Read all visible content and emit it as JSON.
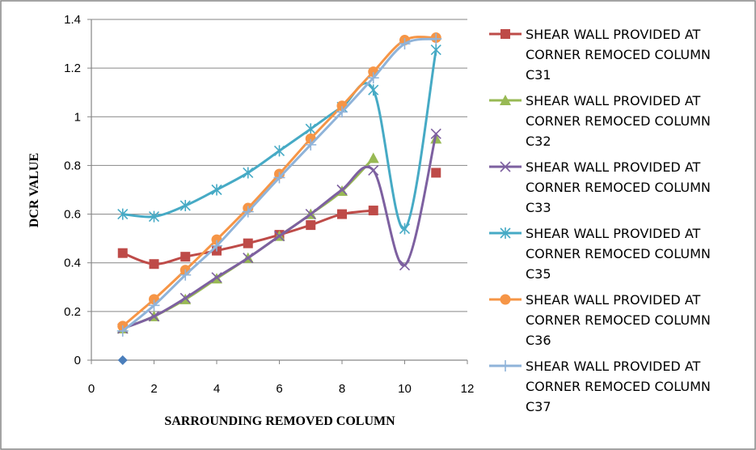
{
  "chart_data": {
    "type": "line",
    "title": "",
    "xlabel": "SARROUNDING REMOVED COLUMN",
    "ylabel": "DCR VALUE",
    "xlim": [
      0,
      12
    ],
    "ylim": [
      0,
      1.4
    ],
    "x_ticks": [
      "0",
      "2",
      "4",
      "6",
      "8",
      "10",
      "12"
    ],
    "y_ticks": [
      "0",
      "0.2",
      "0.4",
      "0.6",
      "0.8",
      "1",
      "1.2",
      "1.4"
    ],
    "grid": "horizontal",
    "legend_position": "right",
    "series": [
      {
        "name_lines": [
          "SHEAR WALL PROVIDED AT",
          "CORNER REMOCED COLUMN",
          "C31"
        ],
        "color": "#be4b48",
        "marker": "square",
        "x": [
          1,
          2,
          3,
          4,
          5,
          6,
          7,
          8,
          9,
          10,
          11
        ],
        "y": [
          0.44,
          0.395,
          0.425,
          0.45,
          0.48,
          0.515,
          0.555,
          0.6,
          0.615,
          null,
          0.77
        ]
      },
      {
        "name_lines": [
          "SHEAR WALL PROVIDED AT",
          "CORNER REMOCED COLUMN",
          "C32"
        ],
        "color": "#98b954",
        "marker": "triangle",
        "x": [
          1,
          2,
          3,
          4,
          5,
          6,
          7,
          8,
          9,
          10,
          11
        ],
        "y": [
          0.13,
          0.18,
          0.25,
          0.335,
          0.42,
          0.51,
          0.6,
          0.695,
          0.83,
          null,
          0.91
        ]
      },
      {
        "name_lines": [
          "SHEAR WALL PROVIDED AT",
          "CORNER REMOCED COLUMN",
          "C33"
        ],
        "color": "#7d60a0",
        "marker": "x",
        "x": [
          1,
          2,
          3,
          4,
          5,
          6,
          7,
          8,
          9,
          10,
          11
        ],
        "y": [
          0.13,
          0.18,
          0.255,
          0.34,
          0.42,
          0.51,
          0.6,
          0.7,
          0.78,
          0.39,
          0.93
        ]
      },
      {
        "name_lines": [
          "SHEAR WALL PROVIDED AT",
          "CORNER REMOCED COLUMN",
          "C35"
        ],
        "color": "#46aac5",
        "marker": "star",
        "x": [
          1,
          2,
          3,
          4,
          5,
          6,
          7,
          8,
          9,
          10,
          11
        ],
        "y": [
          0.6,
          0.59,
          0.635,
          0.7,
          0.77,
          0.86,
          0.95,
          1.04,
          1.11,
          0.54,
          1.275
        ]
      },
      {
        "name_lines": [
          "SHEAR WALL PROVIDED AT",
          "CORNER REMOCED COLUMN",
          "C36"
        ],
        "color": "#f69546",
        "marker": "circle",
        "x": [
          1,
          2,
          3,
          4,
          5,
          6,
          7,
          8,
          9,
          10,
          11
        ],
        "y": [
          0.14,
          0.25,
          0.37,
          0.495,
          0.625,
          0.765,
          0.91,
          1.045,
          1.185,
          1.315,
          1.325
        ]
      },
      {
        "name_lines": [
          "SHEAR WALL PROVIDED AT",
          "CORNER REMOCED COLUMN",
          "C37"
        ],
        "color": "#8fb3d9",
        "marker": "plus",
        "x": [
          1,
          2,
          3,
          4,
          5,
          6,
          7,
          8,
          9,
          10,
          11
        ],
        "y": [
          0.12,
          0.225,
          0.35,
          0.47,
          0.61,
          0.75,
          0.885,
          1.02,
          1.16,
          1.3,
          1.32
        ]
      }
    ],
    "extra_points": [
      {
        "x": 1,
        "y": 0,
        "color": "#4a7ebb",
        "marker": "diamond"
      }
    ]
  }
}
